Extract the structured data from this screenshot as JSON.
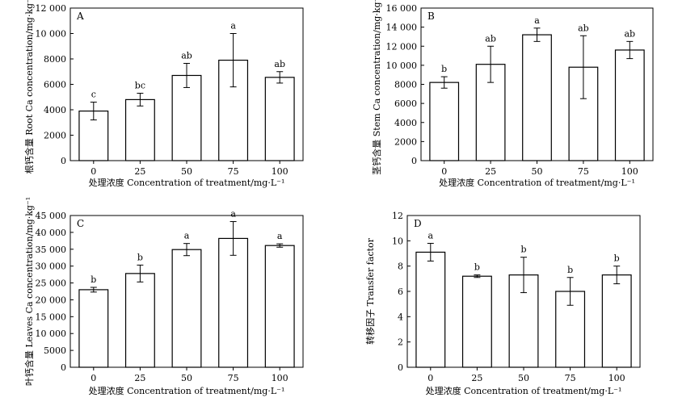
{
  "chart_data": [
    {
      "type": "bar",
      "panel_label": "A",
      "categories": [
        "0",
        "25",
        "50",
        "75",
        "100"
      ],
      "values": [
        3900,
        4800,
        6700,
        7900,
        6550
      ],
      "errors": [
        700,
        500,
        950,
        2100,
        450
      ],
      "significance": [
        "c",
        "bc",
        "ab",
        "a",
        "ab"
      ],
      "ylim": [
        0,
        12000
      ],
      "yticks": [
        0,
        2000,
        4000,
        6000,
        8000,
        10000,
        12000
      ],
      "ytick_labels": [
        "0",
        "2000",
        "4000",
        "6000",
        "8000",
        "10 000",
        "12 000"
      ],
      "ylabel": "根钙含量 Root Ca concentration/mg·kg⁻¹",
      "xlabel": "处理浓度 Concentration of treatment/mg·L⁻¹"
    },
    {
      "type": "bar",
      "panel_label": "B",
      "categories": [
        "0",
        "25",
        "50",
        "75",
        "100"
      ],
      "values": [
        8200,
        10100,
        13200,
        9800,
        11600
      ],
      "errors": [
        600,
        1900,
        700,
        3300,
        900
      ],
      "significance": [
        "b",
        "ab",
        "a",
        "ab",
        "ab"
      ],
      "ylim": [
        0,
        16000
      ],
      "yticks": [
        0,
        2000,
        4000,
        6000,
        8000,
        10000,
        12000,
        14000,
        16000
      ],
      "ytick_labels": [
        "0",
        "2000",
        "4000",
        "6000",
        "8000",
        "10 000",
        "12 000",
        "14 000",
        "16 000"
      ],
      "ylabel": "茎钙含量 Stem Ca concentration/mg·kg⁻¹",
      "xlabel": "处理浓度 Concentration of treatment/mg·L⁻¹"
    },
    {
      "type": "bar",
      "panel_label": "C",
      "categories": [
        "0",
        "25",
        "50",
        "75",
        "100"
      ],
      "values": [
        23000,
        27800,
        34900,
        38200,
        36100
      ],
      "errors": [
        700,
        2500,
        1800,
        5000,
        500
      ],
      "significance": [
        "b",
        "b",
        "a",
        "a",
        "a"
      ],
      "ylim": [
        0,
        45000
      ],
      "yticks": [
        0,
        5000,
        10000,
        15000,
        20000,
        25000,
        30000,
        35000,
        40000,
        45000
      ],
      "ytick_labels": [
        "0",
        "5000",
        "10 000",
        "15 000",
        "20 000",
        "25 000",
        "30 000",
        "35 000",
        "40 000",
        "45 000"
      ],
      "ylabel": "叶钙含量 Leaves Ca concentration/mg·kg⁻¹",
      "xlabel": "处理浓度 Concentration of treatment/mg·L⁻¹"
    },
    {
      "type": "bar",
      "panel_label": "D",
      "categories": [
        "0",
        "25",
        "50",
        "75",
        "100"
      ],
      "values": [
        9.1,
        7.2,
        7.3,
        6.0,
        7.3
      ],
      "errors": [
        0.7,
        0.1,
        1.4,
        1.1,
        0.7
      ],
      "significance": [
        "a",
        "b",
        "b",
        "b",
        "b"
      ],
      "ylim": [
        0,
        12
      ],
      "yticks": [
        0,
        2,
        4,
        6,
        8,
        10,
        12
      ],
      "ytick_labels": [
        "0",
        "2",
        "4",
        "6",
        "8",
        "10",
        "12"
      ],
      "ylabel": "转移因子 Transfer factor",
      "xlabel": "处理浓度 Concentration of treatment/mg·L⁻¹"
    }
  ]
}
